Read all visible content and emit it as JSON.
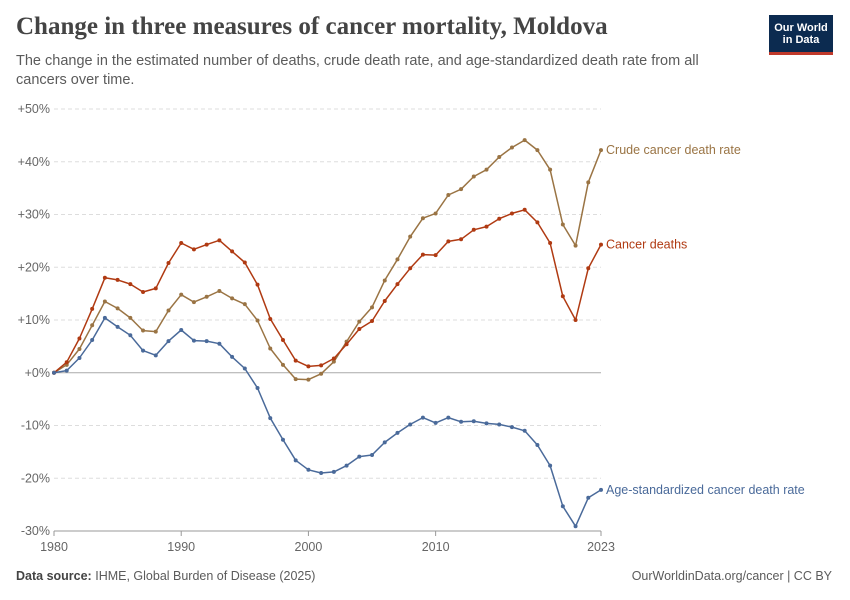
{
  "header": {
    "title": "Change in three measures of cancer mortality, Moldova",
    "subtitle": "The change in the estimated number of deaths, crude death rate, and age-standardized death rate from all cancers over time.",
    "logo_line1": "Our World",
    "logo_line2": "in Data"
  },
  "footer": {
    "source_label": "Data source:",
    "source_text": "IHME, Global Burden of Disease (2025)",
    "right_text": "OurWorldinData.org/cancer | CC BY"
  },
  "colors": {
    "crude": "#9a7444",
    "deaths": "#b03a12",
    "age": "#4a6a9a",
    "grid": "#dddddd",
    "zero": "#aaaaaa",
    "logo_bg": "#0c2b50",
    "logo_accent": "#c0392b"
  },
  "chart_data": {
    "type": "line",
    "x": [
      1980,
      1981,
      1982,
      1983,
      1984,
      1985,
      1986,
      1987,
      1988,
      1989,
      1990,
      1991,
      1992,
      1993,
      1994,
      1995,
      1996,
      1997,
      1998,
      1999,
      2000,
      2001,
      2002,
      2003,
      2004,
      2005,
      2006,
      2007,
      2008,
      2009,
      2010,
      2011,
      2012,
      2013,
      2014,
      2015,
      2016,
      2017,
      2018,
      2019,
      2020,
      2021,
      2022,
      2023
    ],
    "xlim": [
      1980,
      2023
    ],
    "x_ticks": [
      "1980",
      "1990",
      "2000",
      "2010",
      "2023"
    ],
    "ylim": [
      -30,
      50
    ],
    "y_ticks": [
      "+50%",
      "+40%",
      "+30%",
      "+20%",
      "+10%",
      "+0%",
      "-10%",
      "-20%",
      "-30%"
    ],
    "y_tick_values": [
      50,
      40,
      30,
      20,
      10,
      0,
      -10,
      -20,
      -30
    ],
    "grid": true,
    "legend": "line-end labels on the right",
    "series": [
      {
        "name": "Crude cancer death rate",
        "key": "crude",
        "values": [
          0,
          1.5,
          4.5,
          9,
          13.5,
          12.2,
          10.4,
          8,
          7.8,
          11.8,
          14.8,
          13.4,
          14.4,
          15.5,
          14.1,
          13,
          9.9,
          4.6,
          1.5,
          -1.2,
          -1.3,
          -0.2,
          2.1,
          5.9,
          9.7,
          12.4,
          17.5,
          21.5,
          25.8,
          29.3,
          30.2,
          33.7,
          34.8,
          37.2,
          38.5,
          40.9,
          42.7,
          44.1,
          42.2,
          38.5,
          28.1,
          24.1,
          36.1,
          42.2
        ]
      },
      {
        "name": "Cancer deaths",
        "key": "deaths",
        "values": [
          0,
          2,
          6.5,
          12.1,
          18,
          17.6,
          16.8,
          15.3,
          16,
          20.8,
          24.6,
          23.4,
          24.3,
          25.1,
          23,
          20.9,
          16.7,
          10.2,
          6.2,
          2.3,
          1.2,
          1.4,
          2.7,
          5.4,
          8.3,
          9.8,
          13.6,
          16.8,
          19.8,
          22.4,
          22.3,
          24.9,
          25.3,
          27.1,
          27.7,
          29.2,
          30.2,
          30.9,
          28.5,
          24.6,
          14.5,
          10,
          19.8,
          24.3
        ]
      },
      {
        "name": "Age-standardized cancer death rate",
        "key": "age",
        "values": [
          0,
          0.4,
          2.8,
          6.2,
          10.4,
          8.7,
          7.1,
          4.2,
          3.3,
          6,
          8.1,
          6.1,
          6,
          5.5,
          3,
          0.8,
          -2.9,
          -8.6,
          -12.7,
          -16.6,
          -18.4,
          -19,
          -18.8,
          -17.6,
          -15.9,
          -15.6,
          -13.2,
          -11.4,
          -9.8,
          -8.5,
          -9.5,
          -8.5,
          -9.3,
          -9.2,
          -9.6,
          -9.8,
          -10.3,
          -11,
          -13.7,
          -17.6,
          -25.3,
          -29.1,
          -23.7,
          -22.2
        ]
      }
    ]
  }
}
